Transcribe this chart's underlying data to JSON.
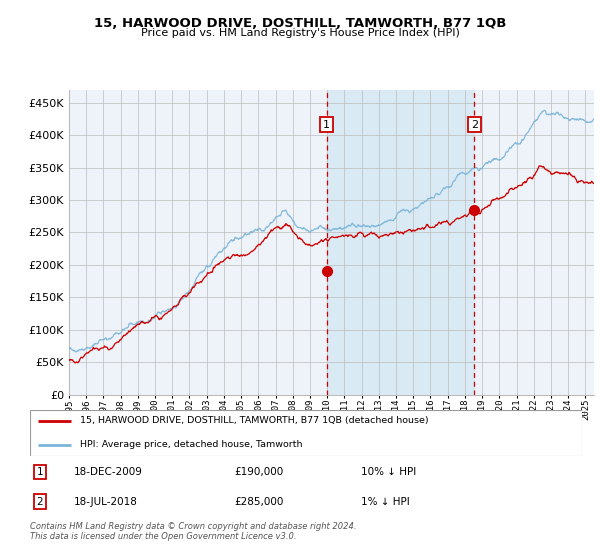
{
  "title": "15, HARWOOD DRIVE, DOSTHILL, TAMWORTH, B77 1QB",
  "subtitle": "Price paid vs. HM Land Registry's House Price Index (HPI)",
  "hpi_color": "#7ab4d8",
  "price_color": "#cc0000",
  "marker_color": "#cc0000",
  "vline_color": "#cc0000",
  "shade_color": "#daeaf5",
  "bg_color": "#eef3fa",
  "grid_color": "#bbbbbb",
  "transaction1_date": 2009.96,
  "transaction1_price": 190000,
  "transaction2_date": 2018.54,
  "transaction2_price": 285000,
  "legend_label1": "15, HARWOOD DRIVE, DOSTHILL, TAMWORTH, B77 1QB (detached house)",
  "legend_label2": "HPI: Average price, detached house, Tamworth",
  "note1_label": "1",
  "note1_date": "18-DEC-2009",
  "note1_price": "£190,000",
  "note1_hpi": "10% ↓ HPI",
  "note2_label": "2",
  "note2_date": "18-JUL-2018",
  "note2_price": "£285,000",
  "note2_hpi": "1% ↓ HPI",
  "footer": "Contains HM Land Registry data © Crown copyright and database right 2024.\nThis data is licensed under the Open Government Licence v3.0.",
  "xmin": 1995.0,
  "xmax": 2025.5,
  "ymin": 0,
  "ymax": 470000,
  "yticks": [
    0,
    50000,
    100000,
    150000,
    200000,
    250000,
    300000,
    350000,
    400000,
    450000
  ]
}
